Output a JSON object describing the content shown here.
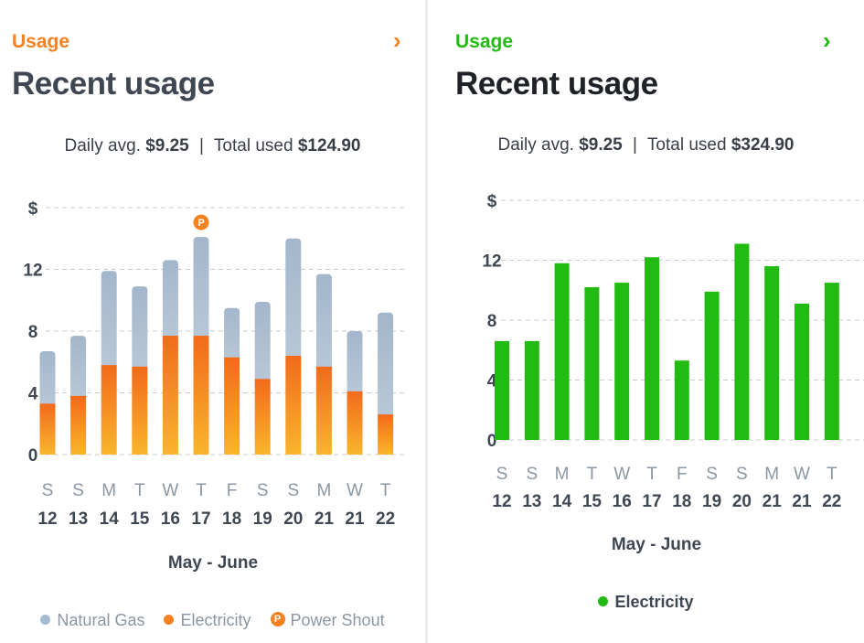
{
  "colors": {
    "orange": "#f58220",
    "green": "#22bb11",
    "gas": "#a7bbd0",
    "dark": "#1f2328",
    "slate": "#3f4753",
    "muted": "#8b96a3",
    "grid": "#c9cdd2"
  },
  "left": {
    "eyebrow": "Usage",
    "chevron": "›",
    "title": "Recent usage",
    "daily_label": "Daily avg.",
    "daily_value": "$9.25",
    "separator": "|",
    "total_label": "Total used",
    "total_value": "$124.90",
    "legend": {
      "gas": "Natural Gas",
      "electricity": "Electricity",
      "shout": "Power Shout",
      "shout_glyph": "P"
    }
  },
  "right": {
    "eyebrow": "Usage",
    "chevron": "›",
    "title": "Recent usage",
    "daily_label": "Daily avg.",
    "daily_value": "$9.25",
    "separator": "|",
    "total_label": "Total used",
    "total_value": "$324.90",
    "legend": {
      "electricity": "Electricity"
    }
  },
  "chart_data": [
    {
      "type": "bar",
      "stacked": true,
      "title": "",
      "xlabel": "May - June",
      "ylabel": "$",
      "ylim": [
        0,
        16
      ],
      "yticks": [
        0,
        4,
        8,
        12
      ],
      "ytick_labels": [
        "0",
        "4",
        "8",
        "12"
      ],
      "top_label": "$",
      "day_letters": [
        "S",
        "S",
        "M",
        "T",
        "W",
        "T",
        "F",
        "S",
        "S",
        "M",
        "W",
        "T"
      ],
      "day_numbers": [
        "12",
        "13",
        "14",
        "15",
        "16",
        "17",
        "18",
        "19",
        "20",
        "21",
        "21",
        "22"
      ],
      "series": [
        {
          "name": "Electricity",
          "values": [
            3.3,
            3.8,
            5.8,
            5.7,
            7.7,
            7.7,
            6.3,
            4.9,
            6.4,
            5.7,
            4.1,
            2.6
          ]
        },
        {
          "name": "Natural Gas",
          "values": [
            3.4,
            3.9,
            6.1,
            5.2,
            4.9,
            6.4,
            3.2,
            5.0,
            7.6,
            6.0,
            3.9,
            6.6
          ]
        }
      ],
      "markers": [
        {
          "index": 5,
          "label": "Power Shout"
        }
      ],
      "legend": [
        "Natural Gas",
        "Electricity",
        "Power Shout"
      ]
    },
    {
      "type": "bar",
      "stacked": false,
      "title": "",
      "xlabel": "May - June",
      "ylabel": "$",
      "ylim": [
        0,
        16
      ],
      "yticks": [
        0,
        4,
        8,
        12
      ],
      "ytick_labels": [
        "0",
        "4",
        "8",
        "12"
      ],
      "top_label": "$",
      "day_letters": [
        "S",
        "S",
        "M",
        "T",
        "W",
        "T",
        "F",
        "S",
        "S",
        "M",
        "W",
        "T"
      ],
      "day_numbers": [
        "12",
        "13",
        "14",
        "15",
        "16",
        "17",
        "18",
        "19",
        "20",
        "21",
        "21",
        "22"
      ],
      "series": [
        {
          "name": "Electricity",
          "values": [
            6.6,
            6.6,
            11.8,
            10.2,
            10.5,
            12.2,
            5.3,
            9.9,
            13.1,
            11.6,
            9.1,
            10.5
          ]
        }
      ],
      "legend": [
        "Electricity"
      ]
    }
  ]
}
